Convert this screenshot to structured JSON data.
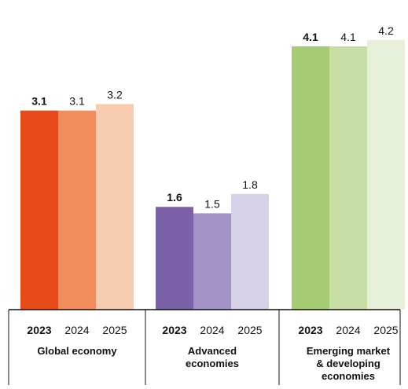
{
  "chart_data": {
    "type": "bar",
    "ylim": [
      0,
      4.65
    ],
    "groups": [
      {
        "name_lines": [
          "Global economy"
        ],
        "bars": [
          {
            "year": "2023",
            "value": 3.1,
            "label": "3.1",
            "emphasis": true,
            "color": "#e64a19"
          },
          {
            "year": "2024",
            "value": 3.1,
            "label": "3.1",
            "emphasis": false,
            "color": "#f28b5c"
          },
          {
            "year": "2025",
            "value": 3.2,
            "label": "3.2",
            "emphasis": false,
            "color": "#f9ccb1"
          }
        ]
      },
      {
        "name_lines": [
          "Advanced",
          "economies"
        ],
        "bars": [
          {
            "year": "2023",
            "value": 1.6,
            "label": "1.6",
            "emphasis": true,
            "color": "#7b62a8"
          },
          {
            "year": "2024",
            "value": 1.5,
            "label": "1.5",
            "emphasis": false,
            "color": "#a392c6"
          },
          {
            "year": "2025",
            "value": 1.8,
            "label": "1.8",
            "emphasis": false,
            "color": "#d6d0e9"
          }
        ]
      },
      {
        "name_lines": [
          "Emerging market",
          "& developing",
          "economies"
        ],
        "bars": [
          {
            "year": "2023",
            "value": 4.1,
            "label": "4.1",
            "emphasis": true,
            "color": "#a6cc73"
          },
          {
            "year": "2024",
            "value": 4.1,
            "label": "4.1",
            "emphasis": false,
            "color": "#c7dea4"
          },
          {
            "year": "2025",
            "value": 4.2,
            "label": "4.2",
            "emphasis": false,
            "color": "#e6f0d8"
          }
        ]
      }
    ],
    "grid": false,
    "legend": "none"
  }
}
